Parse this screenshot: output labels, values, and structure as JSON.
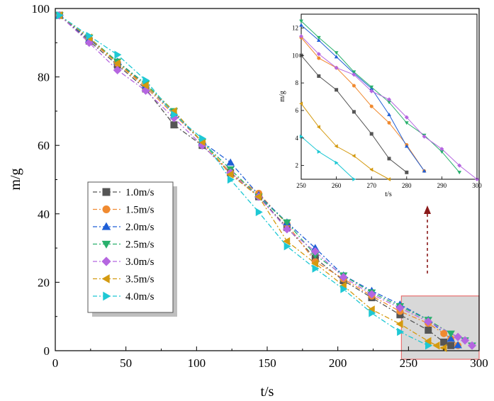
{
  "chart_data": {
    "type": "line",
    "title": "",
    "xlabel": "t/s",
    "ylabel": "m/g",
    "xlim": [
      0,
      300
    ],
    "ylim": [
      0,
      100
    ],
    "xticks": [
      0,
      50,
      100,
      150,
      200,
      250,
      300
    ],
    "yticks": [
      0,
      20,
      40,
      60,
      80,
      100
    ],
    "legend_position": "middle-left",
    "series": [
      {
        "name": "1.0m/s",
        "color": "#555555",
        "marker": "square",
        "x": [
          3,
          24,
          44,
          64,
          84,
          104,
          124,
          144,
          164,
          184,
          204,
          224,
          244,
          264,
          275,
          280
        ],
        "y": [
          98,
          90.5,
          83.5,
          76.5,
          66,
          60,
          52,
          45,
          36,
          27,
          20.5,
          15.5,
          10.5,
          6,
          2.5,
          1.5
        ]
      },
      {
        "name": "1.5m/s",
        "color": "#f08a30",
        "marker": "circle",
        "x": [
          3,
          24,
          44,
          64,
          84,
          104,
          124,
          144,
          164,
          184,
          204,
          224,
          244,
          264,
          275,
          280,
          285
        ],
        "y": [
          98,
          91,
          84,
          77,
          69,
          61,
          52,
          46,
          37,
          26,
          21,
          16,
          11.5,
          8,
          5,
          3.5,
          1.5
        ]
      },
      {
        "name": "2.0m/s",
        "color": "#1f5fd6",
        "marker": "triangle-up",
        "x": [
          3,
          24,
          44,
          64,
          84,
          104,
          124,
          144,
          164,
          184,
          204,
          224,
          244,
          264,
          280,
          285
        ],
        "y": [
          98,
          91,
          84.5,
          77.5,
          69.5,
          61,
          55,
          45.5,
          37.5,
          30,
          22,
          17.5,
          13.5,
          9,
          3.5,
          1.6
        ]
      },
      {
        "name": "2.5m/s",
        "color": "#28b06c",
        "marker": "triangle-down",
        "x": [
          3,
          24,
          44,
          64,
          84,
          104,
          124,
          144,
          164,
          184,
          204,
          224,
          244,
          264,
          280,
          290,
          295
        ],
        "y": [
          98,
          91.5,
          84.5,
          78,
          70,
          61,
          53,
          45,
          37.5,
          28,
          22,
          17,
          13,
          9,
          5,
          3,
          1.5
        ]
      },
      {
        "name": "3.0m/s",
        "color": "#b566e0",
        "marker": "diamond",
        "x": [
          3,
          24,
          44,
          64,
          84,
          104,
          124,
          144,
          164,
          184,
          204,
          224,
          244,
          264,
          285,
          290,
          295
        ],
        "y": [
          98,
          90,
          82,
          76,
          68,
          60,
          52,
          45,
          35.5,
          29,
          21.5,
          16.5,
          12.5,
          8.5,
          4,
          3,
          1.5
        ]
      },
      {
        "name": "3.5m/s",
        "color": "#d49a10",
        "marker": "triangle-left",
        "x": [
          3,
          24,
          44,
          64,
          84,
          104,
          124,
          144,
          164,
          184,
          204,
          224,
          244,
          264,
          270,
          275
        ],
        "y": [
          98,
          91.5,
          84,
          77.5,
          70,
          61,
          51.5,
          45,
          32,
          25.5,
          19,
          12,
          7.8,
          2.8,
          1.5,
          0.8
        ]
      },
      {
        "name": "4.0m/s",
        "color": "#1ec8d4",
        "marker": "triangle-right",
        "x": [
          3,
          24,
          44,
          64,
          84,
          104,
          124,
          144,
          164,
          184,
          204,
          224,
          244,
          264
        ],
        "y": [
          98,
          92,
          86.5,
          79,
          69,
          62,
          50,
          40.5,
          30.5,
          24,
          18,
          11,
          5.5,
          1.5
        ]
      }
    ],
    "highlight_region": {
      "x_range": [
        245,
        300
      ],
      "y_range": [
        -2.5,
        16
      ]
    },
    "inset": {
      "xlabel": "t/s",
      "ylabel": "m/g",
      "xlim": [
        250,
        300
      ],
      "ylim": [
        1,
        13
      ],
      "xticks": [
        250,
        260,
        270,
        280,
        290,
        300
      ],
      "yticks": [
        2,
        4,
        6,
        8,
        10,
        12
      ],
      "series": [
        {
          "name": "1.0m/s",
          "color": "#555555",
          "marker": "square",
          "x": [
            250,
            255,
            260,
            265,
            270,
            275,
            280
          ],
          "y": [
            10,
            8.5,
            7.5,
            5.9,
            4.3,
            2.5,
            1.5
          ]
        },
        {
          "name": "1.5m/s",
          "color": "#f08a30",
          "marker": "circle",
          "x": [
            250,
            255,
            260,
            265,
            270,
            275,
            280,
            285
          ],
          "y": [
            11.3,
            9.8,
            9.1,
            7.8,
            6.3,
            5.1,
            3.5,
            1.6
          ]
        },
        {
          "name": "2.0m/s",
          "color": "#1f5fd6",
          "marker": "triangle-up",
          "x": [
            250,
            255,
            260,
            265,
            270,
            275,
            280,
            285
          ],
          "y": [
            12.2,
            11.1,
            9.9,
            8.7,
            7.6,
            5.7,
            3.4,
            1.6
          ]
        },
        {
          "name": "2.5m/s",
          "color": "#28b06c",
          "marker": "triangle-down",
          "x": [
            250,
            255,
            260,
            265,
            270,
            275,
            280,
            285,
            290,
            295
          ],
          "y": [
            12.5,
            11.3,
            10.2,
            8.8,
            7.7,
            6.6,
            5.1,
            4.2,
            3.0,
            1.5
          ]
        },
        {
          "name": "3.0m/s",
          "color": "#b566e0",
          "marker": "diamond",
          "x": [
            250,
            255,
            260,
            265,
            270,
            275,
            280,
            285,
            290,
            295,
            300
          ],
          "y": [
            11.4,
            10.1,
            9.1,
            8.6,
            7.4,
            6.8,
            5.5,
            4.1,
            3.2,
            2.0,
            1.0
          ]
        },
        {
          "name": "3.5m/s",
          "color": "#d49a10",
          "marker": "triangle-left",
          "x": [
            250,
            255,
            260,
            265,
            270,
            275
          ],
          "y": [
            6.5,
            4.8,
            3.4,
            2.7,
            1.7,
            1.0
          ]
        },
        {
          "name": "4.0m/s",
          "color": "#1ec8d4",
          "marker": "triangle-right",
          "x": [
            250,
            255,
            260,
            265
          ],
          "y": [
            4.1,
            3.0,
            2.2,
            1.0
          ]
        }
      ]
    }
  }
}
